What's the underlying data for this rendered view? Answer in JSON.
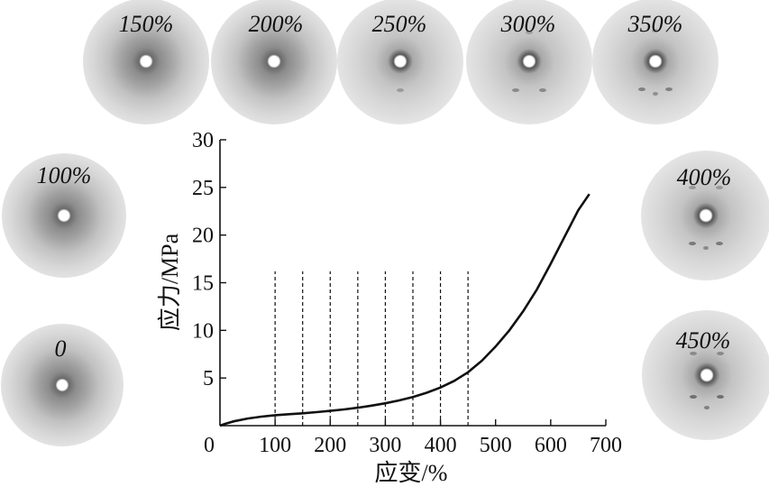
{
  "chart_data": {
    "type": "line",
    "title": "",
    "xlabel": "应变/%",
    "ylabel": "应力/MPa",
    "xlim": [
      0,
      700
    ],
    "ylim": [
      0,
      30
    ],
    "x_ticks": [
      0,
      100,
      200,
      300,
      400,
      500,
      600,
      700
    ],
    "y_ticks": [
      5,
      10,
      15,
      20,
      25,
      30
    ],
    "x_tick_labels": [
      "0",
      "100",
      "200",
      "300",
      "400",
      "500",
      "600",
      "700"
    ],
    "y_tick_labels": [
      "5",
      "10",
      "15",
      "20",
      "25",
      "30"
    ],
    "grid": false,
    "series": [
      {
        "x": [
          0,
          10,
          25,
          50,
          75,
          100,
          125,
          150,
          175,
          200,
          225,
          250,
          275,
          300,
          325,
          350,
          375,
          400,
          425,
          450,
          475,
          500,
          525,
          550,
          575,
          600,
          625,
          650,
          670
        ],
        "y": [
          0,
          0.2,
          0.45,
          0.75,
          0.95,
          1.1,
          1.2,
          1.3,
          1.42,
          1.55,
          1.7,
          1.88,
          2.1,
          2.35,
          2.65,
          3.0,
          3.45,
          4.0,
          4.7,
          5.6,
          6.8,
          8.3,
          10.0,
          12.0,
          14.3,
          17.0,
          19.8,
          22.6,
          24.3
        ]
      }
    ],
    "reference_lines": {
      "x": [
        100,
        150,
        200,
        250,
        300,
        350,
        400,
        450
      ],
      "y_top": 16.2,
      "style": "dashed"
    }
  },
  "patterns": [
    {
      "label": "0"
    },
    {
      "label": "100%"
    },
    {
      "label": "150%"
    },
    {
      "label": "200%"
    },
    {
      "label": "250%"
    },
    {
      "label": "300%"
    },
    {
      "label": "350%"
    },
    {
      "label": "400%"
    },
    {
      "label": "450%"
    }
  ]
}
